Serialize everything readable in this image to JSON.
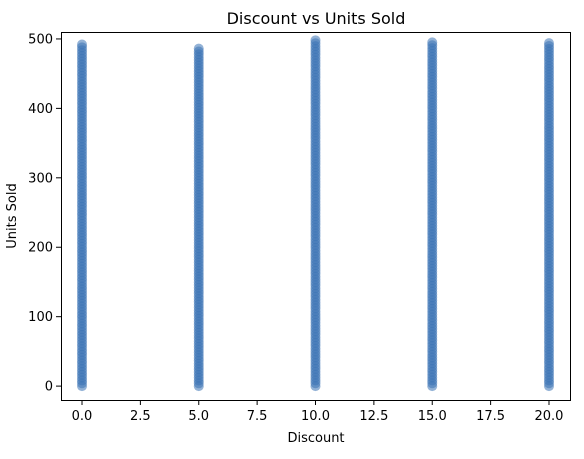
{
  "chart_data": {
    "type": "scatter",
    "title": "Discount vs Units Sold",
    "xlabel": "Discount",
    "ylabel": "Units Sold",
    "xlim": [
      -0.9,
      20.9
    ],
    "ylim": [
      -20,
      510
    ],
    "x_ticks": [
      0.0,
      2.5,
      5.0,
      7.5,
      10.0,
      12.5,
      15.0,
      17.5,
      20.0
    ],
    "x_tick_labels": [
      "0.0",
      "2.5",
      "5.0",
      "7.5",
      "10.0",
      "12.5",
      "15.0",
      "17.5",
      "20.0"
    ],
    "y_ticks": [
      0,
      100,
      200,
      300,
      400,
      500
    ],
    "y_tick_labels": [
      "0",
      "100",
      "200",
      "300",
      "400",
      "500"
    ],
    "grid": false,
    "marker_color": "#3b73b4",
    "series": [
      {
        "x": 0,
        "y_min": 0,
        "y_max": 492
      },
      {
        "x": 5,
        "y_min": 0,
        "y_max": 486
      },
      {
        "x": 10,
        "y_min": 0,
        "y_max": 498
      },
      {
        "x": 15,
        "y_min": 0,
        "y_max": 495
      },
      {
        "x": 20,
        "y_min": 0,
        "y_max": 494
      }
    ]
  }
}
